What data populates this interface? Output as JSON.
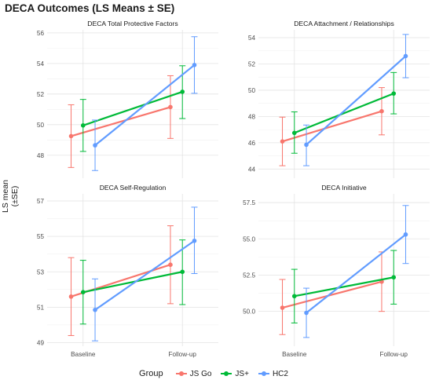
{
  "title": "DECA Outcomes (LS Means ± SE)",
  "ylabel": "LS mean (±SE)",
  "legend": {
    "title": "Group",
    "items": [
      {
        "label": "JS Go",
        "color": "#F8766D"
      },
      {
        "label": "JS+",
        "color": "#00BA38"
      },
      {
        "label": "HC2",
        "color": "#619CFF"
      }
    ]
  },
  "chart_data": [
    {
      "type": "line",
      "title": "DECA Total Protective Factors",
      "categories": [
        "Baseline",
        "Follow-up"
      ],
      "ylim": [
        46.5,
        56.2
      ],
      "yticks": [
        48,
        50,
        52,
        54,
        56
      ],
      "ytick_labels": [
        "48",
        "50",
        "52",
        "54",
        "56"
      ],
      "series": [
        {
          "name": "JS Go",
          "values": [
            49.25,
            51.15
          ],
          "lower": [
            47.2,
            49.1
          ],
          "upper": [
            51.3,
            53.2
          ]
        },
        {
          "name": "JS+",
          "values": [
            49.95,
            52.15
          ],
          "lower": [
            48.25,
            50.4
          ],
          "upper": [
            51.65,
            53.85
          ]
        },
        {
          "name": "HC2",
          "values": [
            48.65,
            53.9
          ],
          "lower": [
            47.0,
            52.05
          ],
          "upper": [
            50.3,
            55.75
          ]
        }
      ]
    },
    {
      "type": "line",
      "title": "DECA Attachment / Relationships",
      "categories": [
        "Baseline",
        "Follow-up"
      ],
      "ylim": [
        43.3,
        54.6
      ],
      "yticks": [
        44,
        46,
        48,
        50,
        52,
        54
      ],
      "ytick_labels": [
        "44",
        "46",
        "48",
        "50",
        "52",
        "54"
      ],
      "series": [
        {
          "name": "JS Go",
          "values": [
            46.1,
            48.4
          ],
          "lower": [
            44.25,
            46.6
          ],
          "upper": [
            47.95,
            50.2
          ]
        },
        {
          "name": "JS+",
          "values": [
            46.75,
            49.75
          ],
          "lower": [
            45.2,
            48.2
          ],
          "upper": [
            48.35,
            51.35
          ]
        },
        {
          "name": "HC2",
          "values": [
            45.85,
            52.6
          ],
          "lower": [
            44.25,
            50.95
          ],
          "upper": [
            47.35,
            54.25
          ]
        }
      ]
    },
    {
      "type": "line",
      "title": "DECA Self-Regulation",
      "categories": [
        "Baseline",
        "Follow-up"
      ],
      "ylim": [
        48.8,
        57.4
      ],
      "yticks": [
        49,
        51,
        53,
        55,
        57
      ],
      "ytick_labels": [
        "49",
        "51",
        "53",
        "55",
        "57"
      ],
      "series": [
        {
          "name": "JS Go",
          "values": [
            51.6,
            53.4
          ],
          "lower": [
            49.4,
            51.2
          ],
          "upper": [
            53.8,
            55.6
          ]
        },
        {
          "name": "JS+",
          "values": [
            51.85,
            53.0
          ],
          "lower": [
            50.05,
            51.15
          ],
          "upper": [
            53.65,
            54.8
          ]
        },
        {
          "name": "HC2",
          "values": [
            50.85,
            54.75
          ],
          "lower": [
            49.1,
            52.9
          ],
          "upper": [
            52.6,
            56.65
          ]
        }
      ]
    },
    {
      "type": "line",
      "title": "DECA Initiative",
      "categories": [
        "Baseline",
        "Follow-up"
      ],
      "ylim": [
        47.6,
        58.1
      ],
      "yticks": [
        50.0,
        52.5,
        55.0,
        57.5
      ],
      "ytick_labels": [
        "50.0",
        "52.5",
        "55.0",
        "57.5"
      ],
      "series": [
        {
          "name": "JS Go",
          "values": [
            50.25,
            52.05
          ],
          "lower": [
            48.4,
            50.0
          ],
          "upper": [
            52.2,
            54.1
          ]
        },
        {
          "name": "JS+",
          "values": [
            51.05,
            52.35
          ],
          "lower": [
            49.2,
            50.5
          ],
          "upper": [
            52.9,
            54.2
          ]
        },
        {
          "name": "HC2",
          "values": [
            49.9,
            55.3
          ],
          "lower": [
            48.2,
            53.3
          ],
          "upper": [
            51.6,
            57.3
          ]
        }
      ]
    }
  ]
}
